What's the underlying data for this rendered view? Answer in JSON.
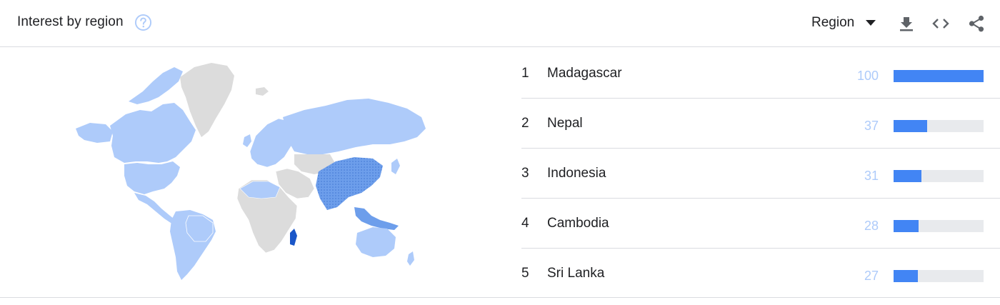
{
  "header": {
    "title": "Interest by region",
    "region_selector": "Region"
  },
  "colors": {
    "bar_fill": "#4285f4",
    "bar_track": "#e8eaed",
    "value_text": "#aecbfa",
    "map_low": "#aecbfa",
    "map_mid": "#6d9eeb",
    "map_high": "#1a56c8",
    "map_none": "#dcdcdc"
  },
  "ranking": [
    {
      "rank": "1",
      "name": "Madagascar",
      "value": "100",
      "level": 100
    },
    {
      "rank": "2",
      "name": "Nepal",
      "value": "37",
      "level": 37
    },
    {
      "rank": "3",
      "name": "Indonesia",
      "value": "31",
      "level": 31
    },
    {
      "rank": "4",
      "name": "Cambodia",
      "value": "28",
      "level": 28
    },
    {
      "rank": "5",
      "name": "Sri Lanka",
      "value": "27",
      "level": 27
    }
  ]
}
